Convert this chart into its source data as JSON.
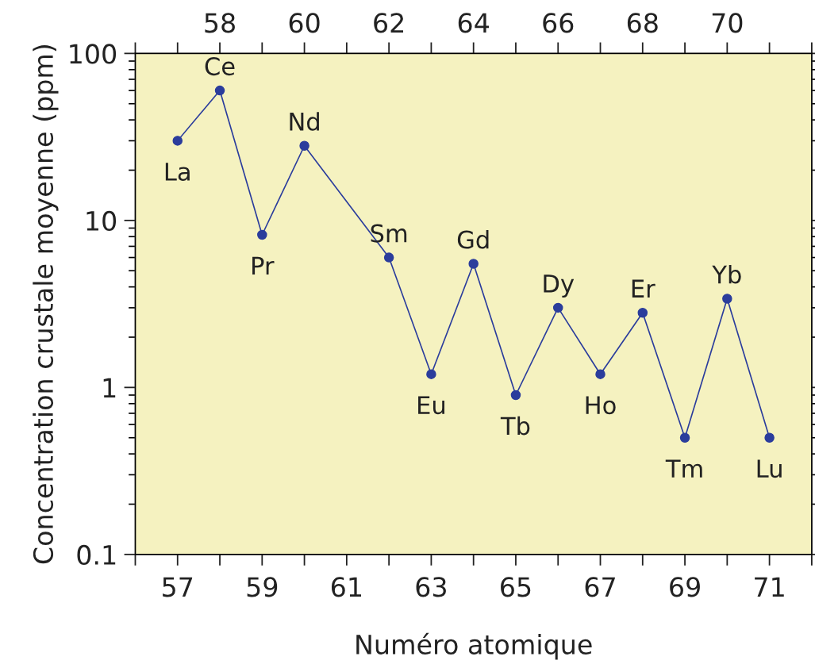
{
  "chart_data": {
    "type": "line",
    "xlabel": "Numéro atomique",
    "ylabel": "Concentration crustale moyenne (ppm)",
    "x": [
      57,
      58,
      59,
      60,
      62,
      63,
      64,
      65,
      66,
      67,
      68,
      69,
      70,
      71
    ],
    "series": [
      {
        "color": "#2b3d9c",
        "values": [
          30,
          60,
          8.2,
          28,
          6.0,
          1.2,
          5.5,
          0.9,
          3.0,
          1.2,
          2.8,
          0.5,
          3.4,
          0.5
        ]
      }
    ],
    "marker": "circle",
    "line_style": "solid",
    "log": "y",
    "grid": false,
    "xlim": [
      56,
      72
    ],
    "ylim": [
      0.1,
      100
    ],
    "xticks": [
      {
        "value": 56,
        "label": null
      },
      57,
      {
        "value": 58,
        "label": null
      },
      59,
      {
        "value": 60,
        "label": null
      },
      61,
      {
        "value": 62,
        "label": null
      },
      63,
      {
        "value": 64,
        "label": null
      },
      65,
      {
        "value": 66,
        "label": null
      },
      67,
      {
        "value": 68,
        "label": null
      },
      69,
      {
        "value": 70,
        "label": null
      },
      71,
      {
        "value": 72,
        "label": null
      }
    ],
    "x2lim": [
      56,
      72
    ],
    "x2ticks": [
      {
        "value": 56,
        "label": null
      },
      {
        "value": 57,
        "label": null
      },
      58,
      {
        "value": 59,
        "label": null
      },
      60,
      {
        "value": 61,
        "label": null
      },
      62,
      {
        "value": 63,
        "label": null
      },
      64,
      {
        "value": 65,
        "label": null
      },
      66,
      {
        "value": 67,
        "label": null
      },
      68,
      {
        "value": 69,
        "label": null
      },
      70,
      {
        "value": 71,
        "label": null
      },
      {
        "value": 72,
        "label": null
      }
    ],
    "yticks": [
      0.1,
      1,
      10,
      100
    ],
    "annotations": [
      {
        "text": "La",
        "x": 57,
        "y": 30
      },
      {
        "text": "Ce",
        "x": 58,
        "y": 60
      },
      {
        "text": "Pr",
        "x": 59,
        "y": 8.2
      },
      {
        "text": "Nd",
        "x": 60,
        "y": 28
      },
      {
        "text": "Sm",
        "x": 62,
        "y": 6.0
      },
      {
        "text": "Eu",
        "x": 63,
        "y": 1.2
      },
      {
        "text": "Gd",
        "x": 64,
        "y": 5.5
      },
      {
        "text": "Tb",
        "x": 65,
        "y": 0.9
      },
      {
        "text": "Dy",
        "x": 66,
        "y": 3.0
      },
      {
        "text": "Ho",
        "x": 67,
        "y": 1.2
      },
      {
        "text": "Er",
        "x": 68,
        "y": 2.8
      },
      {
        "text": "Tm",
        "x": 69,
        "y": 0.5
      },
      {
        "text": "Yb",
        "x": 70,
        "y": 3.4
      },
      {
        "text": "Lu",
        "x": 71,
        "y": 0.5
      }
    ]
  }
}
